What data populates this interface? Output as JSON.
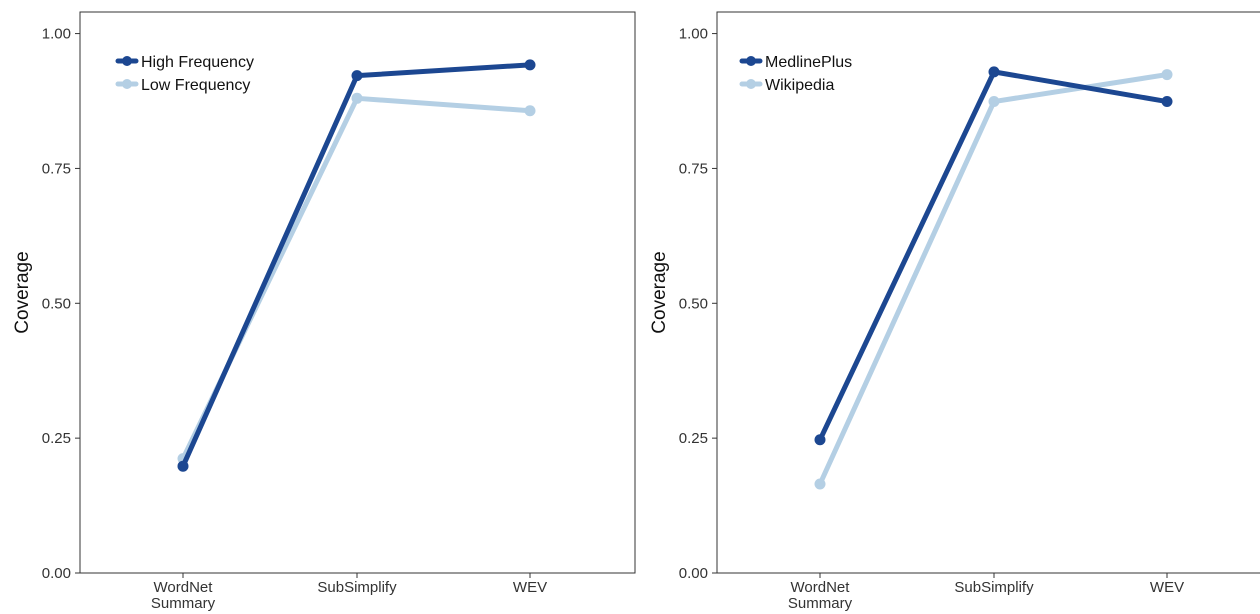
{
  "chart_data": [
    {
      "type": "line",
      "categories": [
        "WordNet\nSummary",
        "SubSimplify",
        "WEV"
      ],
      "ylabel": "Coverage",
      "ylim": [
        0,
        1.04
      ],
      "yticks": [
        "0.00",
        "0.25",
        "0.50",
        "0.75",
        "1.00"
      ],
      "grid": false,
      "legend_position": "top-left",
      "series": [
        {
          "name": "High Frequency",
          "color": "#1c4791",
          "values": [
            0.198,
            0.922,
            0.942
          ]
        },
        {
          "name": "Low Frequency",
          "color": "#b4cfe4",
          "values": [
            0.212,
            0.88,
            0.857
          ]
        }
      ]
    },
    {
      "type": "line",
      "categories": [
        "WordNet\nSummary",
        "SubSimplify",
        "WEV"
      ],
      "ylabel": "Coverage",
      "ylim": [
        0,
        1.04
      ],
      "yticks": [
        "0.00",
        "0.25",
        "0.50",
        "0.75",
        "1.00"
      ],
      "grid": false,
      "legend_position": "top-left",
      "series": [
        {
          "name": "MedlinePlus",
          "color": "#1c4791",
          "values": [
            0.247,
            0.929,
            0.874
          ]
        },
        {
          "name": "Wikipedia",
          "color": "#b4cfe4",
          "values": [
            0.165,
            0.874,
            0.924
          ]
        }
      ]
    }
  ]
}
